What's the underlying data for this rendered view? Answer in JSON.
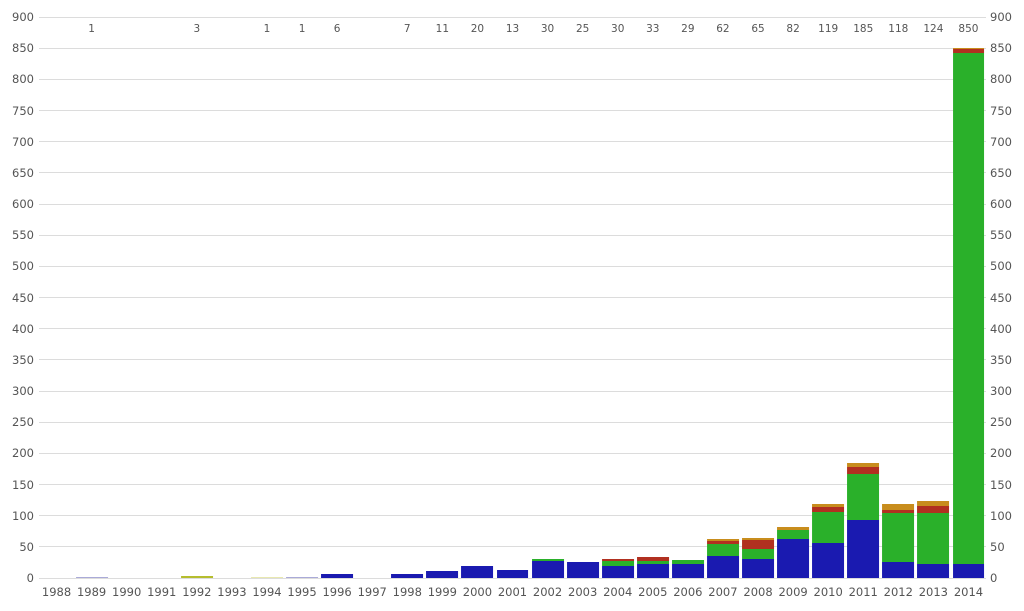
{
  "chart_data": {
    "type": "bar",
    "stacked": true,
    "title": "",
    "xlabel": "",
    "ylabel": "",
    "ylim": [
      0,
      900
    ],
    "yticks": [
      0,
      50,
      100,
      150,
      200,
      250,
      300,
      350,
      400,
      450,
      500,
      550,
      600,
      650,
      700,
      750,
      800,
      850,
      900
    ],
    "grid": true,
    "legend_position": "none",
    "y_axis_labels_on_both_sides": true,
    "colors": {
      "background": "#ffffff",
      "gridline": "#dcdcdc",
      "tick_text": "#555555"
    },
    "series": [
      {
        "name": "blue",
        "color": "#1a1ab0"
      },
      {
        "name": "green",
        "color": "#2ab02a"
      },
      {
        "name": "dark-red",
        "color": "#b13020"
      },
      {
        "name": "gold",
        "color": "#c88d1d"
      },
      {
        "name": "lavender",
        "color": "#aaaad8"
      },
      {
        "name": "olive",
        "color": "#b5bd2e"
      },
      {
        "name": "pale-yellow",
        "color": "#e8e8b0"
      }
    ],
    "bars": [
      {
        "year": "1988",
        "total": null,
        "segments": {}
      },
      {
        "year": "1989",
        "total": "1",
        "segments": {
          "lavender": 1
        }
      },
      {
        "year": "1990",
        "total": null,
        "segments": {}
      },
      {
        "year": "1991",
        "total": null,
        "segments": {}
      },
      {
        "year": "1992",
        "total": "3",
        "segments": {
          "olive": 3
        }
      },
      {
        "year": "1993",
        "total": null,
        "segments": {}
      },
      {
        "year": "1994",
        "total": "1",
        "segments": {
          "pale-yellow": 1
        }
      },
      {
        "year": "1995",
        "total": "1",
        "segments": {
          "lavender": 1
        }
      },
      {
        "year": "1996",
        "total": "6",
        "segments": {
          "blue": 6
        }
      },
      {
        "year": "1997",
        "total": null,
        "segments": {}
      },
      {
        "year": "1998",
        "total": "7",
        "segments": {
          "blue": 7
        }
      },
      {
        "year": "1999",
        "total": "11",
        "segments": {
          "blue": 11
        }
      },
      {
        "year": "2000",
        "total": "20",
        "segments": {
          "blue": 20
        }
      },
      {
        "year": "2001",
        "total": "13",
        "segments": {
          "blue": 13
        }
      },
      {
        "year": "2002",
        "total": "30",
        "segments": {
          "blue": 28,
          "green": 2
        }
      },
      {
        "year": "2003",
        "total": "25",
        "segments": {
          "blue": 25
        }
      },
      {
        "year": "2004",
        "total": "30",
        "segments": {
          "blue": 20,
          "green": 7,
          "dark-red": 3
        }
      },
      {
        "year": "2005",
        "total": "33",
        "segments": {
          "blue": 22,
          "green": 5,
          "dark-red": 6
        }
      },
      {
        "year": "2006",
        "total": "29",
        "segments": {
          "blue": 23,
          "green": 6
        }
      },
      {
        "year": "2007",
        "total": "62",
        "segments": {
          "blue": 35,
          "green": 19,
          "dark-red": 5,
          "gold": 3
        }
      },
      {
        "year": "2008",
        "total": "65",
        "segments": {
          "blue": 30,
          "green": 17,
          "dark-red": 14,
          "gold": 4
        }
      },
      {
        "year": "2009",
        "total": "82",
        "segments": {
          "blue": 62,
          "green": 15,
          "gold": 5
        }
      },
      {
        "year": "2010",
        "total": "119",
        "segments": {
          "blue": 56,
          "green": 50,
          "dark-red": 8,
          "gold": 5
        }
      },
      {
        "year": "2011",
        "total": "185",
        "segments": {
          "blue": 93,
          "green": 74,
          "dark-red": 11,
          "gold": 7
        }
      },
      {
        "year": "2012",
        "total": "118",
        "segments": {
          "blue": 26,
          "green": 79,
          "dark-red": 4,
          "gold": 9
        }
      },
      {
        "year": "2013",
        "total": "124",
        "segments": {
          "blue": 22,
          "green": 82,
          "dark-red": 11,
          "gold": 9
        }
      },
      {
        "year": "2014",
        "total": "850",
        "segments": {
          "blue": 22,
          "green": 821,
          "dark-red": 5,
          "gold": 2
        }
      }
    ]
  }
}
